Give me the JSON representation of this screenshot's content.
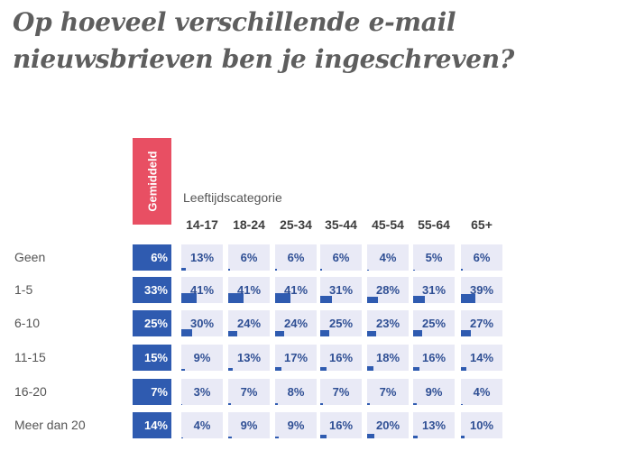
{
  "title": "Op hoeveel verschillende e-mail nieuwsbrieven ben je ingeschreven?",
  "average_label": "Gemiddeld",
  "category_label": "Leeftijdscategorie",
  "colors": {
    "accent": "#e84f63",
    "bar": "#2f5bb0",
    "cell_bg": "#e9eaf6",
    "text": "#2f4f94"
  },
  "chart_data": {
    "type": "heatmap",
    "unit": "%",
    "columns": [
      "14-17",
      "18-24",
      "25-34",
      "35-44",
      "45-54",
      "55-64",
      "65+"
    ],
    "rows": [
      "Geen",
      "1-5",
      "6-10",
      "11-15",
      "16-20",
      "Meer dan 20"
    ],
    "average": [
      6,
      33,
      25,
      15,
      7,
      14
    ],
    "values": [
      [
        13,
        6,
        6,
        6,
        4,
        5,
        6
      ],
      [
        41,
        41,
        41,
        31,
        28,
        31,
        39
      ],
      [
        30,
        24,
        24,
        25,
        23,
        25,
        27
      ],
      [
        9,
        13,
        17,
        16,
        18,
        16,
        14
      ],
      [
        3,
        7,
        8,
        7,
        7,
        9,
        4
      ],
      [
        4,
        9,
        9,
        16,
        20,
        13,
        10
      ]
    ]
  }
}
